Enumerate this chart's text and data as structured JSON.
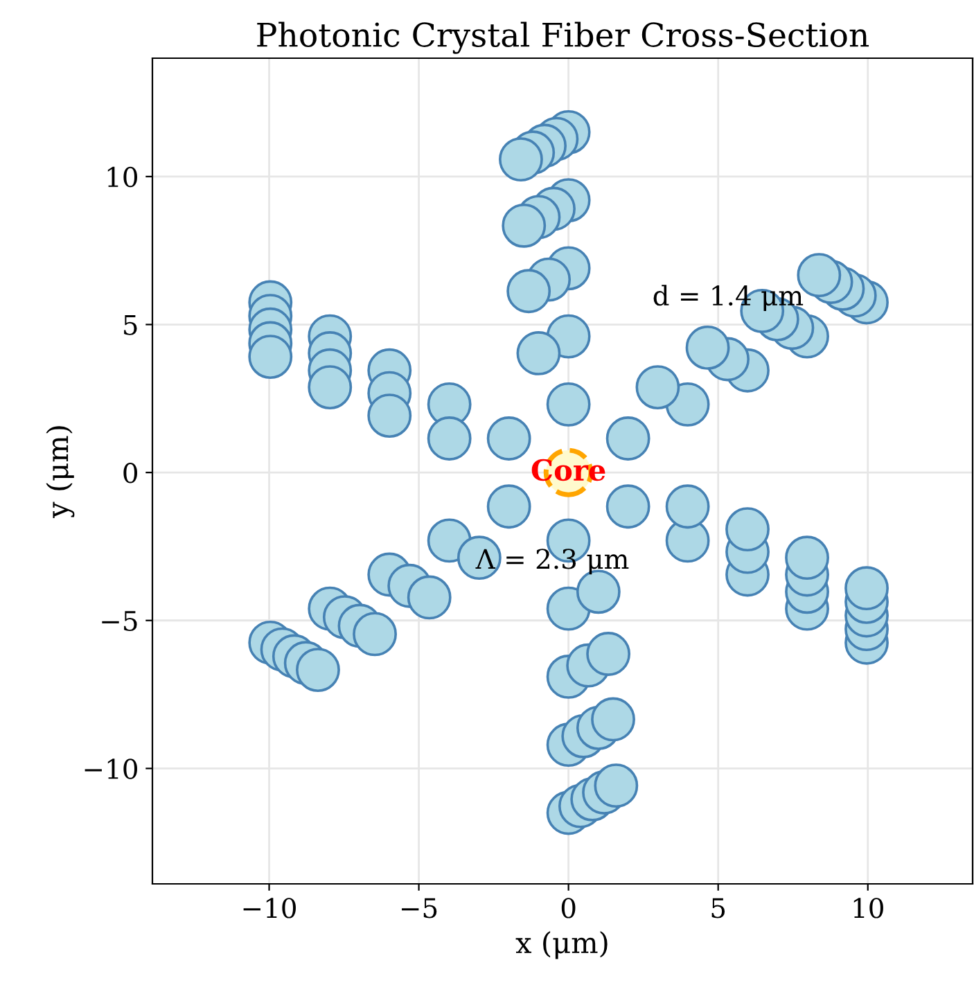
{
  "chart_data": {
    "type": "scatter",
    "title": "Photonic Crystal Fiber Cross-Section",
    "xlabel": "x (μm)",
    "ylabel": "y (μm)",
    "xlim": [
      -13.9,
      13.5
    ],
    "ylim": [
      -13.9,
      14.0
    ],
    "xticks": [
      -10,
      -5,
      0,
      5,
      10
    ],
    "yticks": [
      -10,
      -5,
      0,
      5,
      10
    ],
    "grid": true,
    "marker": "circle",
    "series": [
      {
        "color": "#add8e6",
        "x": [
          0,
          -1.99,
          -1.99,
          0,
          1.99,
          1.99,
          0,
          -1.0,
          -3.98,
          -3.98,
          -3.98,
          -2.98,
          0,
          1.0,
          3.98,
          3.98,
          3.98,
          2.98,
          0,
          -0.66,
          -1.33,
          -5.98,
          -5.98,
          -5.98,
          -5.98,
          -5.31,
          -4.65,
          0,
          0.66,
          1.33,
          5.98,
          5.98,
          5.98,
          5.98,
          5.31,
          4.65,
          0,
          -0.5,
          -1.0,
          -1.49,
          -7.97,
          -7.97,
          -7.97,
          -7.97,
          -7.97,
          -7.47,
          -6.97,
          -6.47,
          0,
          0.5,
          1.0,
          1.49,
          7.97,
          7.97,
          7.97,
          7.97,
          7.97,
          7.47,
          6.97,
          6.47,
          0,
          -0.4,
          -0.8,
          -1.19,
          -1.59,
          -9.96,
          -9.96,
          -9.96,
          -9.96,
          -9.96,
          -9.96,
          -9.56,
          -9.16,
          -8.77,
          -8.37,
          0,
          0.4,
          0.8,
          1.19,
          1.59,
          9.96,
          9.96,
          9.96,
          9.96,
          9.96,
          9.96,
          9.56,
          9.16,
          8.77,
          8.37
        ],
        "values": [
          2.3,
          1.15,
          -1.15,
          -2.3,
          -1.15,
          1.15,
          4.6,
          4.03,
          2.3,
          1.15,
          -2.3,
          -2.88,
          -4.6,
          -4.03,
          -2.3,
          -1.15,
          2.3,
          2.88,
          6.9,
          6.52,
          6.13,
          3.45,
          2.68,
          1.92,
          -3.45,
          -3.83,
          -4.22,
          -6.9,
          -6.52,
          -6.13,
          -3.45,
          -2.68,
          -1.92,
          3.45,
          3.83,
          4.22,
          9.2,
          8.91,
          8.63,
          8.34,
          4.6,
          4.03,
          3.45,
          2.88,
          -4.6,
          -4.89,
          -5.18,
          -5.46,
          -9.2,
          -8.91,
          -8.63,
          -8.34,
          -4.6,
          -4.03,
          -3.45,
          -2.88,
          4.6,
          4.89,
          5.18,
          5.46,
          11.5,
          11.27,
          11.04,
          10.81,
          10.58,
          5.75,
          5.29,
          4.83,
          4.37,
          3.91,
          -5.75,
          -5.98,
          -6.21,
          -6.44,
          -6.67,
          -11.5,
          -11.27,
          -11.04,
          -10.81,
          -10.58,
          -5.75,
          -5.29,
          -4.83,
          -4.37,
          -3.91,
          5.75,
          5.98,
          6.21,
          6.44,
          6.67
        ]
      }
    ],
    "annotations": [
      "Core",
      "d = 1.4 μm",
      "Λ = 2.3 μm"
    ]
  }
}
